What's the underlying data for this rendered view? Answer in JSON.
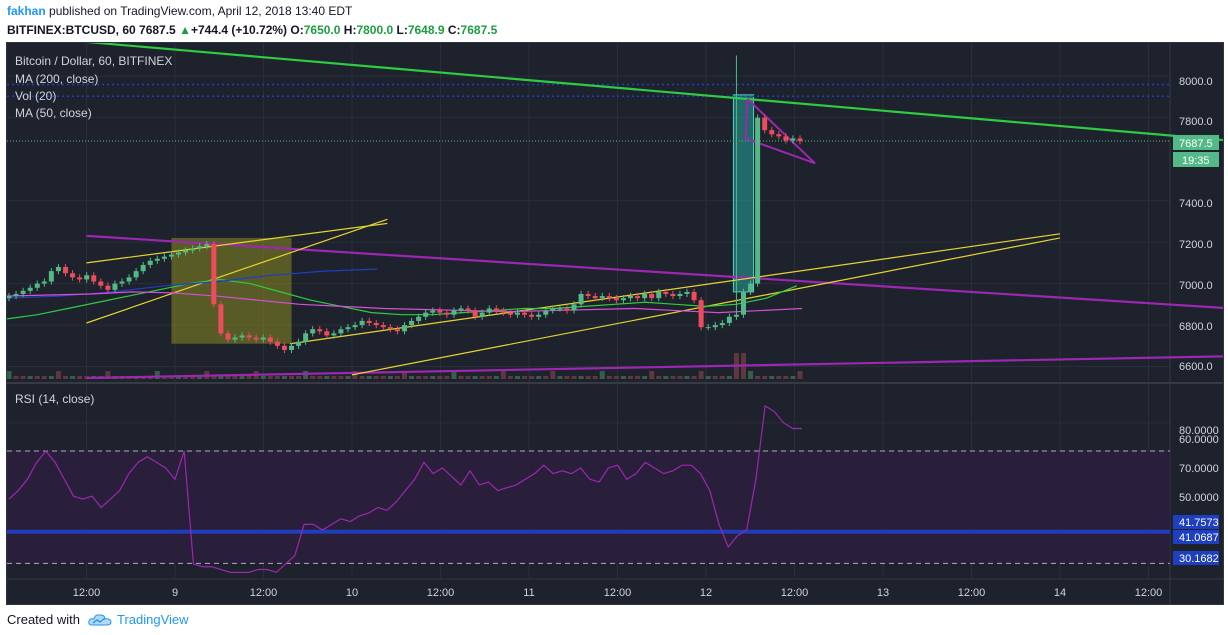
{
  "publish": {
    "author": "fakhan",
    "text": "published on TradingView.com, April 12, 2018 13:40 EDT"
  },
  "ticker": {
    "symbol": "BITFINEX:BTCUSD, 60",
    "last": "7687.5",
    "change": "+744.4 (+10.72%)",
    "o_label": "O:",
    "o": "7650.0",
    "h_label": "H:",
    "h": "7800.0",
    "l_label": "L:",
    "l": "7648.9",
    "c_label": "C:",
    "c": "7687.5"
  },
  "legend": {
    "title": "Bitcoin / Dollar, 60, BITFINEX",
    "ma200": "MA (200, close)",
    "vol": "Vol (20)",
    "ma50": "MA (50, close)",
    "rsi": "RSI (14, close)"
  },
  "price_axis": [
    "8000.0",
    "7800.0",
    "7400.0",
    "7200.0",
    "7000.0",
    "6800.0",
    "6600.0"
  ],
  "price_tags": {
    "last": "7687.5",
    "countdown": "19:35"
  },
  "rsi_axis": [
    "80.0000",
    "70.0000",
    "60.0000",
    "50.0000"
  ],
  "rsi_tags": [
    "41.7573",
    "41.0687",
    "30.1682"
  ],
  "time_axis": [
    "12:00",
    "9",
    "12:00",
    "10",
    "12:00",
    "11",
    "12:00",
    "12",
    "12:00",
    "13",
    "12:00",
    "14",
    "12:00"
  ],
  "footer": {
    "created": "Created with",
    "brand": "TradingView"
  },
  "colors": {
    "background": "#1e222d",
    "up": "#53b987",
    "down": "#eb4d5c",
    "trend_green": "#2ecc40",
    "trend_purple": "#9c27b0",
    "trend_yellow": "#e6d52e",
    "ma50": "#2ecc40",
    "ma200": "#1e3fbf",
    "rsi_line": "#9c27b0",
    "rsi_band": "#2a1f3d",
    "last_price": "#53b987"
  },
  "chart_data": [
    {
      "type": "candlestick",
      "title": "Bitcoin / Dollar, 60, BITFINEX",
      "x_labels": [
        "12:00",
        "9",
        "12:00",
        "10",
        "12:00",
        "11",
        "12:00",
        "12",
        "12:00",
        "13",
        "12:00",
        "14",
        "12:00"
      ],
      "y_range": [
        6540,
        8160
      ],
      "y_ticks": [
        6600,
        6800,
        7000,
        7200,
        7400,
        7800,
        8000
      ],
      "last_price": 7687.5,
      "close": [
        6940,
        6950,
        6965,
        6980,
        7000,
        7010,
        7060,
        7080,
        7050,
        7030,
        7020,
        7040,
        7010,
        6990,
        6970,
        7000,
        7010,
        7030,
        7060,
        7090,
        7110,
        7120,
        7130,
        7140,
        7150,
        7160,
        7170,
        7180,
        7190,
        6900,
        6760,
        6730,
        6740,
        6750,
        6740,
        6730,
        6740,
        6720,
        6700,
        6680,
        6700,
        6720,
        6760,
        6780,
        6770,
        6750,
        6760,
        6780,
        6790,
        6800,
        6820,
        6810,
        6800,
        6790,
        6780,
        6770,
        6800,
        6820,
        6840,
        6860,
        6870,
        6860,
        6850,
        6870,
        6880,
        6870,
        6840,
        6860,
        6880,
        6870,
        6860,
        6850,
        6860,
        6850,
        6840,
        6850,
        6870,
        6880,
        6880,
        6870,
        6900,
        6950,
        6940,
        6930,
        6940,
        6930,
        6920,
        6930,
        6940,
        6930,
        6950,
        6930,
        6960,
        6950,
        6940,
        6950,
        6960,
        6920,
        6790,
        6790,
        6800,
        6810,
        6840,
        6850,
        6960,
        7000,
        7800,
        7740,
        7720,
        7710,
        7690,
        7700,
        7687
      ],
      "ma50": [
        6830,
        6850,
        6880,
        6910,
        6940,
        6970,
        7000,
        7020,
        7000,
        6960,
        6920,
        6890,
        6860,
        6850,
        6850,
        6860,
        6870,
        6880,
        6880,
        6890,
        6900,
        6910,
        6900,
        6890,
        6900,
        6930,
        6990
      ],
      "ma200": [
        6930,
        6940,
        6960,
        6990,
        7010,
        7040,
        7060,
        7070
      ],
      "trendlines": [
        {
          "color": "green",
          "from": [
            -0.5,
            8165
          ],
          "to": [
            6.9,
            7620
          ]
        },
        {
          "color": "purple",
          "from": [
            -0.5,
            7230
          ],
          "to": [
            6.9,
            6830
          ]
        },
        {
          "color": "purple",
          "from": [
            -0.5,
            6545
          ],
          "to": [
            6.9,
            6665
          ]
        },
        {
          "color": "yellow",
          "from": [
            -0.5,
            7100
          ],
          "to": [
            1.2,
            7290
          ]
        },
        {
          "color": "yellow",
          "from": [
            -0.5,
            6810
          ],
          "to": [
            1.2,
            7310
          ]
        },
        {
          "color": "yellow",
          "from": [
            0.65,
            6710
          ],
          "to": [
            5.0,
            7240
          ]
        },
        {
          "color": "yellow",
          "from": [
            1.0,
            6560
          ],
          "to": [
            5.0,
            7220
          ]
        }
      ]
    },
    {
      "type": "line",
      "title": "RSI (14, close)",
      "y_range": [
        25,
        92
      ],
      "y_ticks": [
        50,
        60,
        70,
        80
      ],
      "levels": [
        70,
        30.1682,
        41.0687,
        41.7573
      ],
      "values": [
        53,
        56,
        60,
        66,
        70,
        66,
        60,
        54,
        53,
        54,
        50,
        53,
        56,
        62,
        66,
        68,
        66,
        64,
        60,
        70,
        30,
        29,
        29,
        28,
        27,
        27,
        27,
        28,
        28,
        27,
        30,
        33,
        44,
        44,
        42,
        44,
        46,
        45,
        47,
        48,
        50,
        49,
        52,
        56,
        60,
        66,
        62,
        64,
        61,
        58,
        63,
        58,
        59,
        56,
        57,
        58,
        60,
        62,
        65,
        62,
        63,
        62,
        64,
        60,
        59,
        64,
        65,
        60,
        62,
        66,
        64,
        62,
        63,
        65,
        65,
        62,
        56,
        44,
        36,
        40,
        42,
        60,
        86,
        84,
        80,
        78,
        78
      ]
    }
  ]
}
